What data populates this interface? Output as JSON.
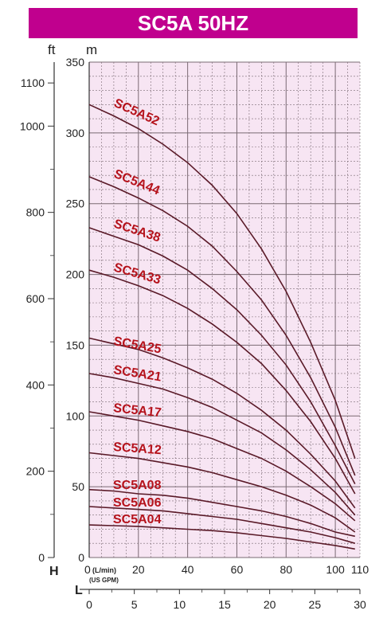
{
  "title": "SC5A 50HZ",
  "colors": {
    "title_bg": "#c0008e",
    "plot_bg": "#f7e5f3",
    "grid": "#7a6a73",
    "curve": "#5a1a28",
    "label": "#b5121b"
  },
  "chart_data": {
    "type": "line",
    "title": "SC5A 50HZ",
    "x_primary": {
      "unit_label": "(L/min)",
      "ticks": [
        "0",
        "20",
        "40",
        "60",
        "80",
        "100",
        "110"
      ],
      "range": [
        0,
        110
      ]
    },
    "x_secondary": {
      "axis_letter": "L",
      "unit_label": "(US GPM)",
      "ticks": [
        "0",
        "5",
        "10",
        "15",
        "20",
        "25",
        "30"
      ],
      "range": [
        0,
        30
      ]
    },
    "y_left": {
      "unit_label": "ft",
      "axis_letter": "H",
      "ticks": [
        "0",
        "200",
        "400",
        "600",
        "800",
        "1000",
        "1100"
      ]
    },
    "y_right": {
      "unit_label": "m",
      "ticks": [
        "0",
        "50",
        "100",
        "150",
        "200",
        "250",
        "300",
        "350"
      ],
      "range": [
        0,
        350
      ]
    },
    "grid": true,
    "series": [
      {
        "name": "SC5A52",
        "x": [
          0,
          10,
          20,
          30,
          40,
          50,
          60,
          70,
          80,
          90,
          100,
          108
        ],
        "y": [
          320,
          312,
          303,
          292,
          279,
          263,
          243,
          218,
          188,
          152,
          111,
          70
        ]
      },
      {
        "name": "SC5A44",
        "x": [
          0,
          10,
          20,
          30,
          40,
          50,
          60,
          70,
          80,
          90,
          100,
          108
        ],
        "y": [
          269,
          262,
          254,
          245,
          234,
          220,
          202,
          182,
          157,
          127,
          92,
          58
        ]
      },
      {
        "name": "SC5A38",
        "x": [
          0,
          10,
          20,
          30,
          40,
          50,
          60,
          70,
          80,
          90,
          100,
          108
        ],
        "y": [
          233,
          227,
          221,
          213,
          203,
          190,
          175,
          157,
          136,
          110,
          79,
          52
        ]
      },
      {
        "name": "SC5A33",
        "x": [
          0,
          10,
          20,
          30,
          40,
          50,
          60,
          70,
          80,
          90,
          100,
          108
        ],
        "y": [
          203,
          198,
          192,
          185,
          176,
          165,
          152,
          137,
          118,
          96,
          70,
          45
        ]
      },
      {
        "name": "SC5A25",
        "x": [
          0,
          10,
          20,
          30,
          40,
          50,
          60,
          70,
          80,
          90,
          100,
          108
        ],
        "y": [
          155,
          151,
          147,
          141,
          134,
          126,
          116,
          104,
          90,
          73,
          54,
          35
        ]
      },
      {
        "name": "SC5A21",
        "x": [
          0,
          10,
          20,
          30,
          40,
          50,
          60,
          70,
          80,
          90,
          100,
          108
        ],
        "y": [
          130,
          127,
          123,
          119,
          113,
          106,
          97,
          88,
          76,
          62,
          46,
          30
        ]
      },
      {
        "name": "SC5A17",
        "x": [
          0,
          10,
          20,
          30,
          40,
          50,
          60,
          70,
          80,
          90,
          100,
          108
        ],
        "y": [
          103,
          100,
          97,
          93,
          89,
          84,
          77,
          70,
          61,
          50,
          38,
          26
        ]
      },
      {
        "name": "SC5A12",
        "x": [
          0,
          10,
          20,
          30,
          40,
          50,
          60,
          70,
          80,
          90,
          100,
          108
        ],
        "y": [
          74,
          72,
          70,
          67,
          64,
          60,
          55,
          50,
          44,
          37,
          28,
          18
        ]
      },
      {
        "name": "SC5A08",
        "x": [
          0,
          10,
          20,
          30,
          40,
          50,
          60,
          70,
          80,
          90,
          100,
          108
        ],
        "y": [
          48,
          47,
          45,
          44,
          42,
          39,
          36,
          33,
          29,
          24,
          18,
          15
        ]
      },
      {
        "name": "SC5A06",
        "x": [
          0,
          10,
          20,
          30,
          40,
          50,
          60,
          70,
          80,
          90,
          100,
          108
        ],
        "y": [
          36,
          35,
          34,
          33,
          31,
          29,
          27,
          24,
          21,
          18,
          14,
          10
        ]
      },
      {
        "name": "SC5A04",
        "x": [
          0,
          10,
          20,
          30,
          40,
          50,
          60,
          70,
          80,
          90,
          100,
          108
        ],
        "y": [
          23,
          22.5,
          22,
          21,
          20,
          19,
          17.5,
          15.5,
          13.5,
          11,
          8.5,
          6
        ]
      }
    ]
  }
}
